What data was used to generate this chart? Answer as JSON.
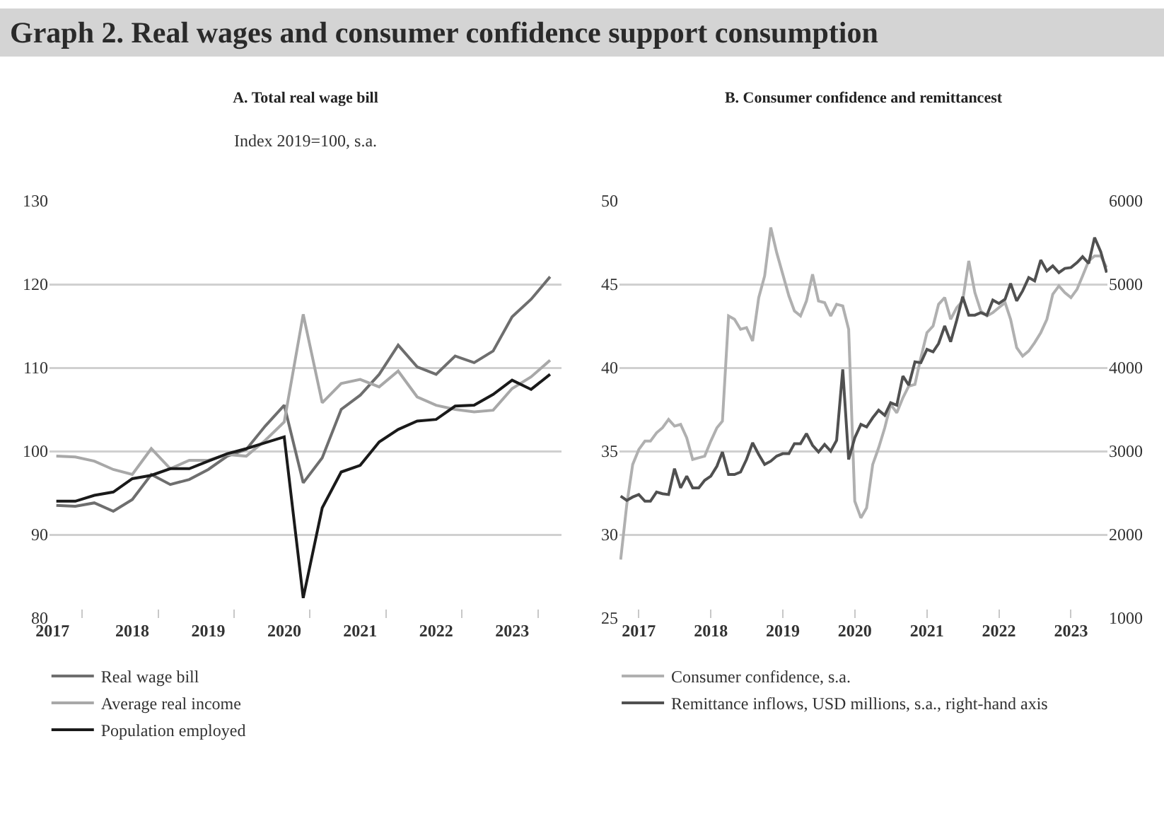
{
  "chart_data": [
    {
      "type": "line",
      "title": "A. Total real wage bill",
      "subtitle": "Index 2019=100, s.a.",
      "annotations": [
        "Graph 2. Real wages and consumer confidence support consumption"
      ],
      "x": [
        2017,
        2017.25,
        2017.5,
        2017.75,
        2018,
        2018.25,
        2018.5,
        2018.75,
        2019,
        2019.25,
        2019.5,
        2019.75,
        2020,
        2020.25,
        2020.5,
        2020.75,
        2021,
        2021.25,
        2021.5,
        2021.75,
        2022,
        2022.25,
        2022.5,
        2022.75,
        2023,
        2023.25,
        2023.5
      ],
      "series": [
        {
          "name": "Real wage bill",
          "color": "#6e6e6e",
          "values": [
            93.5,
            93.4,
            93.8,
            92.8,
            94.2,
            97.2,
            96.0,
            96.6,
            97.8,
            99.4,
            100.2,
            103.0,
            105.5,
            96.2,
            99.2,
            105.0,
            106.7,
            109.2,
            112.7,
            110.1,
            109.2,
            111.4,
            110.6,
            112.0,
            116.1,
            118.2,
            120.9
          ]
        },
        {
          "name": "Average real income",
          "color": "#a8a8a8",
          "values": [
            99.4,
            99.3,
            98.8,
            97.8,
            97.2,
            100.3,
            97.9,
            98.9,
            98.9,
            99.6,
            99.4,
            101.3,
            103.5,
            116.4,
            105.8,
            108.1,
            108.6,
            107.7,
            109.6,
            106.5,
            105.5,
            105.0,
            104.7,
            104.9,
            107.5,
            108.9,
            110.9
          ]
        },
        {
          "name": "Population employed",
          "color": "#1a1a1a",
          "values": [
            94.0,
            94.0,
            94.7,
            95.1,
            96.7,
            97.1,
            97.9,
            97.9,
            98.8,
            99.7,
            100.3,
            101.0,
            101.7,
            82.4,
            93.2,
            97.5,
            98.3,
            101.1,
            102.6,
            103.6,
            103.8,
            105.4,
            105.5,
            106.8,
            108.5,
            107.4,
            109.2
          ]
        }
      ],
      "xlim": [
        2016.91,
        2023.65
      ],
      "xticks": [
        {
          "value": 2016.95,
          "label": "2017"
        },
        2018,
        2019,
        2020,
        2021,
        2022,
        2023,
        {
          "value": 2017.34,
          "label": null
        },
        {
          "value": 2018.34,
          "label": null
        },
        {
          "value": 2019.34,
          "label": null
        },
        {
          "value": 2020.34,
          "label": null
        },
        {
          "value": 2021.34,
          "label": null
        },
        {
          "value": 2022.34,
          "label": null
        },
        {
          "value": 2023.34,
          "label": null
        }
      ],
      "ylim": [
        80,
        130
      ],
      "yticks": [
        80,
        90,
        100,
        110,
        120,
        130
      ],
      "grid": "y",
      "legend": "bottom left"
    },
    {
      "type": "line",
      "title": "B. Consumer confidence and remittancest",
      "x": [
        "2016-10",
        "2016-11",
        "2016-12",
        "2017-01",
        "2017-02",
        "2017-03",
        "2017-04",
        "2017-05",
        "2017-06",
        "2017-07",
        "2017-08",
        "2017-09",
        "2017-10",
        "2017-11",
        "2017-12",
        "2018-01",
        "2018-02",
        "2018-03",
        "2018-04",
        "2018-05",
        "2018-06",
        "2018-07",
        "2018-08",
        "2018-09",
        "2018-10",
        "2018-11",
        "2018-12",
        "2019-01",
        "2019-02",
        "2019-03",
        "2019-04",
        "2019-05",
        "2019-06",
        "2019-07",
        "2019-08",
        "2019-09",
        "2019-10",
        "2019-11",
        "2019-12",
        "2020-01",
        "2020-02",
        "2020-03",
        "2020-04",
        "2020-05",
        "2020-06",
        "2020-07",
        "2020-08",
        "2020-09",
        "2020-10",
        "2020-11",
        "2020-12",
        "2021-01",
        "2021-02",
        "2021-03",
        "2021-04",
        "2021-05",
        "2021-06",
        "2021-07",
        "2021-08",
        "2021-09",
        "2021-10",
        "2021-11",
        "2021-12",
        "2022-01",
        "2022-02",
        "2022-03",
        "2022-04",
        "2022-05",
        "2022-06",
        "2022-07",
        "2022-08",
        "2022-09",
        "2022-10",
        "2022-11",
        "2022-12",
        "2023-01",
        "2023-02",
        "2023-03",
        "2023-04",
        "2023-05",
        "2023-06",
        "2023-07"
      ],
      "series": [
        {
          "name": "Consumer confidence, s.a.",
          "color": "#b0b0b0",
          "values": [
            28.5,
            31.8,
            34.2,
            35.1,
            35.6,
            35.6,
            36.1,
            36.4,
            36.9,
            36.5,
            36.6,
            35.8,
            34.5,
            34.6,
            34.7,
            35.6,
            36.4,
            36.8,
            43.1,
            42.9,
            42.3,
            42.4,
            41.6,
            44.2,
            45.5,
            48.4,
            46.9,
            45.6,
            44.3,
            43.4,
            43.1,
            44.0,
            45.6,
            44.0,
            43.9,
            43.1,
            43.8,
            43.7,
            42.3,
            32.0,
            31.0,
            31.6,
            34.2,
            35.2,
            36.4,
            37.8,
            37.3,
            38.2,
            38.9,
            39.0,
            40.6,
            42.1,
            42.5,
            43.8,
            44.2,
            42.9,
            43.6,
            44.0,
            46.4,
            44.5,
            43.4,
            43.1,
            43.3,
            43.6,
            43.9,
            42.9,
            41.2,
            40.7,
            41.0,
            41.5,
            42.1,
            42.9,
            44.4,
            44.9,
            44.5,
            44.2,
            44.7,
            45.5,
            46.4,
            46.7,
            46.7,
            46.0
          ]
        },
        {
          "name": "Remittance inflows, USD millions, s.a., right-hand axis",
          "color": "#505050",
          "axis": "y2",
          "values": [
            2460,
            2410,
            2450,
            2480,
            2400,
            2400,
            2510,
            2490,
            2480,
            2790,
            2560,
            2700,
            2560,
            2560,
            2650,
            2700,
            2820,
            2990,
            2720,
            2720,
            2750,
            2900,
            3100,
            2960,
            2840,
            2880,
            2940,
            2970,
            2970,
            3090,
            3090,
            3210,
            3070,
            2990,
            3080,
            3000,
            3130,
            3980,
            2900,
            3160,
            3320,
            3290,
            3400,
            3490,
            3430,
            3580,
            3550,
            3900,
            3790,
            4070,
            4060,
            4220,
            4190,
            4290,
            4500,
            4310,
            4570,
            4850,
            4630,
            4630,
            4660,
            4630,
            4810,
            4770,
            4820,
            5010,
            4800,
            4920,
            5080,
            5040,
            5290,
            5160,
            5220,
            5140,
            5190,
            5200,
            5260,
            5330,
            5250,
            5560,
            5390,
            5140
          ]
        }
      ],
      "xlim": [
        "2016-09-25",
        "2023-07-05"
      ],
      "xticks": [
        {
          "value": "2017",
          "label": "2017"
        },
        {
          "value": "2018",
          "label": "2018"
        },
        {
          "value": "2019",
          "label": "2019"
        },
        {
          "value": "2020",
          "label": "2020"
        },
        {
          "value": "2021",
          "label": "2021"
        },
        {
          "value": "2022",
          "label": "2022"
        },
        {
          "value": "2023",
          "label": "2023"
        }
      ],
      "ylim": [
        25,
        50
      ],
      "yticks": [
        25,
        30,
        35,
        40,
        45,
        50
      ],
      "y2lim": [
        1000,
        6000
      ],
      "y2ticks": [
        1000,
        2000,
        3000,
        4000,
        5000,
        6000
      ],
      "grid": "y",
      "legend": "bottom left"
    }
  ]
}
